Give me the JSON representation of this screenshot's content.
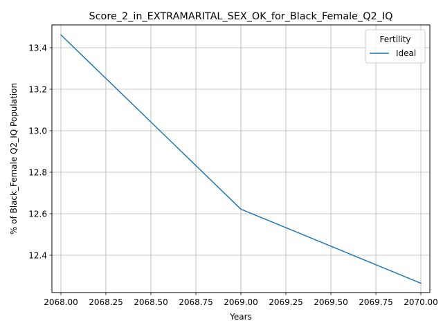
{
  "chart_data": {
    "type": "line",
    "title": "Score_2_in_EXTRAMARITAL_SEX_OK_for_Black_Female_Q2_IQ",
    "xlabel": "Years",
    "ylabel": "% of Black_Female Q2_IQ Population",
    "xlim": [
      2067.95,
      2070.05
    ],
    "ylim": [
      12.22,
      13.51
    ],
    "x_ticks": [
      2068.0,
      2068.25,
      2068.5,
      2068.75,
      2069.0,
      2069.25,
      2069.5,
      2069.75,
      2070.0
    ],
    "x_tick_labels": [
      "2068.00",
      "2068.25",
      "2068.50",
      "2068.75",
      "2069.00",
      "2069.25",
      "2069.50",
      "2069.75",
      "2070.00"
    ],
    "y_ticks": [
      12.4,
      12.6,
      12.8,
      13.0,
      13.2,
      13.4
    ],
    "y_tick_labels": [
      "12.4",
      "12.6",
      "12.8",
      "13.0",
      "13.2",
      "13.4"
    ],
    "grid": true,
    "legend": {
      "title": "Fertility",
      "placement": "top-right"
    },
    "series": [
      {
        "name": "Ideal",
        "color": "#1f77b4",
        "x": [
          2068,
          2069,
          2070
        ],
        "y": [
          13.462,
          12.622,
          12.265
        ]
      }
    ]
  }
}
